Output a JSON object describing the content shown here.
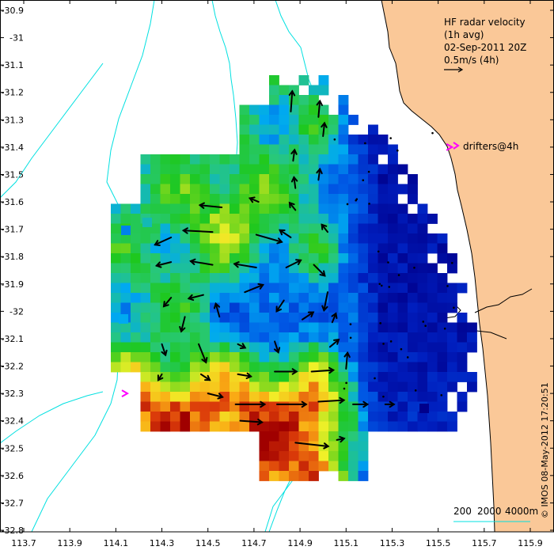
{
  "colors": {
    "land": "#fac898",
    "coastline": "#000000",
    "isobath": "#00e0e0",
    "drifter": "#ff00ff",
    "arrow": "#000000"
  },
  "legend": {
    "line1": "HF radar velocity",
    "line2": "(1h avg)",
    "line3": "02-Sep-2011 20Z",
    "line4": "0.5m/s (4h)",
    "drifters_label": "drifters@4h"
  },
  "isobath_legend": {
    "labels": [
      "200",
      "2000",
      "4000m"
    ]
  },
  "credit": "© IMOS 08-May-2012 17:20:51",
  "chart_data": {
    "type": "heatmap",
    "title": "",
    "xlabel": "",
    "ylabel": "",
    "xlim": [
      113.7,
      115.9
    ],
    "ylim": [
      -32.8,
      -30.9
    ],
    "x_ticks": [
      "113.7",
      "113.9",
      "114.1",
      "114.3",
      "114.5",
      "114.7",
      "114.9",
      "115.1",
      "115.3",
      "115.5",
      "115.7",
      "115.9"
    ],
    "x_tick_values": [
      113.7,
      113.9,
      114.1,
      114.3,
      114.5,
      114.7,
      114.9,
      115.1,
      115.3,
      115.5,
      115.7,
      115.9
    ],
    "y_ticks": [
      "-30.9",
      "-31",
      "-31.1",
      "-31.2",
      "-31.3",
      "-31.4",
      "-31.5",
      "-31.6",
      "-31.7",
      "-31.8",
      "-31.9",
      "-32",
      "-32.1",
      "-32.2",
      "-32.3",
      "-32.4",
      "-32.5",
      "-32.6",
      "-32.7",
      "-32.8"
    ],
    "y_tick_values": [
      -30.9,
      -31,
      -31.1,
      -31.2,
      -31.3,
      -31.4,
      -31.5,
      -31.6,
      -31.7,
      -31.8,
      -31.9,
      -32,
      -32.1,
      -32.2,
      -32.3,
      -32.4,
      -32.5,
      -32.6,
      -32.7,
      -32.8
    ],
    "speed_range": [
      0,
      1
    ],
    "arrow_reference_speed": 0.5,
    "arrows": [
      {
        "lon": 114.86,
        "lat": -31.27,
        "u": 0.02,
        "v": 0.28
      },
      {
        "lon": 114.98,
        "lat": -31.29,
        "u": 0.02,
        "v": 0.22
      },
      {
        "lon": 115.0,
        "lat": -31.36,
        "u": 0.02,
        "v": 0.18
      },
      {
        "lon": 114.87,
        "lat": -31.45,
        "u": 0.02,
        "v": 0.15
      },
      {
        "lon": 114.88,
        "lat": -31.55,
        "u": -0.02,
        "v": 0.15
      },
      {
        "lon": 114.98,
        "lat": -31.52,
        "u": 0.02,
        "v": 0.15
      },
      {
        "lon": 114.56,
        "lat": -31.62,
        "u": -0.3,
        "v": 0.03
      },
      {
        "lon": 114.72,
        "lat": -31.6,
        "u": -0.12,
        "v": 0.05
      },
      {
        "lon": 114.88,
        "lat": -31.63,
        "u": -0.08,
        "v": 0.1
      },
      {
        "lon": 114.34,
        "lat": -31.73,
        "u": -0.22,
        "v": -0.1
      },
      {
        "lon": 114.52,
        "lat": -31.71,
        "u": -0.4,
        "v": 0.02
      },
      {
        "lon": 114.71,
        "lat": -31.72,
        "u": 0.35,
        "v": -0.1
      },
      {
        "lon": 114.86,
        "lat": -31.73,
        "u": -0.15,
        "v": 0.1
      },
      {
        "lon": 115.02,
        "lat": -31.71,
        "u": -0.08,
        "v": 0.1
      },
      {
        "lon": 114.34,
        "lat": -31.82,
        "u": -0.2,
        "v": -0.05
      },
      {
        "lon": 114.52,
        "lat": -31.83,
        "u": -0.3,
        "v": 0.05
      },
      {
        "lon": 114.71,
        "lat": -31.84,
        "u": -0.3,
        "v": 0.05
      },
      {
        "lon": 114.84,
        "lat": -31.84,
        "u": 0.2,
        "v": 0.1
      },
      {
        "lon": 114.96,
        "lat": -31.83,
        "u": 0.15,
        "v": -0.15
      },
      {
        "lon": 114.34,
        "lat": -31.95,
        "u": -0.1,
        "v": -0.12
      },
      {
        "lon": 114.48,
        "lat": -31.94,
        "u": -0.2,
        "v": -0.05
      },
      {
        "lon": 114.66,
        "lat": -31.93,
        "u": 0.25,
        "v": 0.1
      },
      {
        "lon": 114.83,
        "lat": -31.96,
        "u": -0.1,
        "v": -0.15
      },
      {
        "lon": 115.02,
        "lat": -31.93,
        "u": -0.05,
        "v": -0.25
      },
      {
        "lon": 114.4,
        "lat": -32.02,
        "u": -0.05,
        "v": -0.2
      },
      {
        "lon": 114.55,
        "lat": -32.02,
        "u": -0.05,
        "v": 0.18
      },
      {
        "lon": 114.91,
        "lat": -32.03,
        "u": 0.15,
        "v": 0.1
      },
      {
        "lon": 115.04,
        "lat": -32.04,
        "u": 0.05,
        "v": 0.12
      },
      {
        "lon": 114.3,
        "lat": -32.12,
        "u": 0.05,
        "v": -0.15
      },
      {
        "lon": 114.46,
        "lat": -32.12,
        "u": 0.1,
        "v": -0.25
      },
      {
        "lon": 114.63,
        "lat": -32.12,
        "u": 0.1,
        "v": -0.05
      },
      {
        "lon": 114.79,
        "lat": -32.11,
        "u": 0.05,
        "v": -0.15
      },
      {
        "lon": 115.03,
        "lat": -32.13,
        "u": 0.12,
        "v": 0.1
      },
      {
        "lon": 114.3,
        "lat": -32.23,
        "u": -0.05,
        "v": -0.08
      },
      {
        "lon": 114.47,
        "lat": -32.23,
        "u": 0.12,
        "v": -0.08
      },
      {
        "lon": 114.63,
        "lat": -32.23,
        "u": 0.18,
        "v": -0.03
      },
      {
        "lon": 114.79,
        "lat": -32.22,
        "u": 0.3,
        "v": 0.0
      },
      {
        "lon": 114.95,
        "lat": -32.22,
        "u": 0.3,
        "v": 0.02
      },
      {
        "lon": 115.1,
        "lat": -32.21,
        "u": 0.02,
        "v": 0.22
      },
      {
        "lon": 114.5,
        "lat": -32.3,
        "u": 0.2,
        "v": -0.05
      },
      {
        "lon": 114.62,
        "lat": -32.34,
        "u": 0.4,
        "v": 0.0
      },
      {
        "lon": 114.8,
        "lat": -32.34,
        "u": 0.4,
        "v": 0.0
      },
      {
        "lon": 114.98,
        "lat": -32.33,
        "u": 0.35,
        "v": 0.02
      },
      {
        "lon": 115.13,
        "lat": -32.34,
        "u": 0.2,
        "v": 0.0
      },
      {
        "lon": 115.27,
        "lat": -32.34,
        "u": 0.12,
        "v": 0.0
      },
      {
        "lon": 114.64,
        "lat": -32.4,
        "u": 0.3,
        "v": -0.02
      },
      {
        "lon": 114.88,
        "lat": -32.48,
        "u": 0.45,
        "v": -0.05
      },
      {
        "lon": 115.06,
        "lat": -32.47,
        "u": 0.1,
        "v": 0.02
      }
    ],
    "drifters": [
      {
        "lon": 115.55,
        "lat": -31.4,
        "u": 0.08,
        "v": 0.0
      },
      {
        "lon": 114.14,
        "lat": -32.3,
        "u": 0.06,
        "v": -0.03
      }
    ]
  }
}
